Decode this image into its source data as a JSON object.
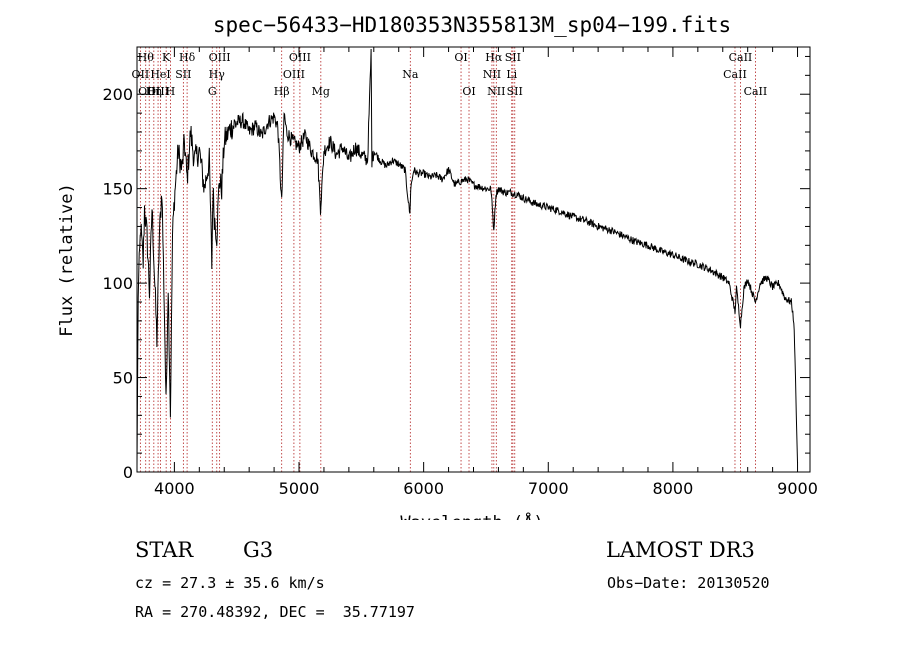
{
  "chart_data": {
    "type": "line",
    "title": "spec−56433−HD180353N355813M_sp04−199.fits",
    "xlabel": "Wavelength (Å)",
    "ylabel": "Flux (relative)",
    "xlim": [
      3700,
      9100
    ],
    "ylim": [
      0,
      225
    ],
    "xticks": [
      4000,
      5000,
      6000,
      7000,
      8000,
      9000
    ],
    "yticks": [
      0,
      50,
      100,
      150,
      200
    ],
    "series": [
      {
        "name": "spectrum",
        "x": [
          3700,
          3710,
          3730,
          3750,
          3760,
          3780,
          3800,
          3820,
          3840,
          3860,
          3880,
          3900,
          3920,
          3933,
          3950,
          3968,
          3985,
          4000,
          4030,
          4060,
          4080,
          4102,
          4130,
          4160,
          4200,
          4240,
          4280,
          4300,
          4310,
          4320,
          4340,
          4360,
          4380,
          4400,
          4450,
          4500,
          4550,
          4600,
          4650,
          4700,
          4750,
          4800,
          4830,
          4861,
          4880,
          4900,
          4950,
          5000,
          5050,
          5100,
          5150,
          5172,
          5183,
          5200,
          5250,
          5300,
          5350,
          5400,
          5450,
          5500,
          5550,
          5578,
          5585,
          5600,
          5650,
          5700,
          5750,
          5800,
          5850,
          5890,
          5896,
          5920,
          5950,
          6000,
          6050,
          6100,
          6150,
          6200,
          6250,
          6300,
          6350,
          6400,
          6450,
          6500,
          6540,
          6563,
          6580,
          6600,
          6650,
          6700,
          6750,
          6800,
          6900,
          7000,
          7100,
          7200,
          7300,
          7400,
          7500,
          7600,
          7700,
          7800,
          7900,
          8000,
          8100,
          8200,
          8300,
          8400,
          8450,
          8498,
          8510,
          8542,
          8570,
          8600,
          8662,
          8700,
          8750,
          8800,
          8850,
          8900,
          8950,
          8970,
          8980,
          8990,
          9000
        ],
        "y": [
          3,
          95,
          130,
          110,
          140,
          125,
          95,
          140,
          105,
          70,
          125,
          150,
          85,
          35,
          100,
          30,
          125,
          145,
          170,
          160,
          175,
          155,
          180,
          165,
          170,
          150,
          165,
          110,
          150,
          135,
          125,
          155,
          150,
          175,
          182,
          185,
          186,
          180,
          183,
          178,
          185,
          188,
          183,
          142,
          190,
          180,
          175,
          172,
          178,
          170,
          166,
          140,
          150,
          170,
          175,
          168,
          172,
          165,
          172,
          168,
          165,
          222,
          165,
          170,
          165,
          162,
          165,
          163,
          160,
          136,
          150,
          160,
          158,
          158,
          156,
          157,
          155,
          160,
          152,
          154,
          155,
          152,
          151,
          150,
          150,
          128,
          147,
          150,
          148,
          148,
          147,
          145,
          142,
          140,
          138,
          135,
          133,
          130,
          128,
          125,
          122,
          120,
          117,
          115,
          112,
          110,
          107,
          103,
          100,
          85,
          97,
          78,
          97,
          102,
          90,
          100,
          103,
          98,
          100,
          92,
          90,
          80,
          60,
          30,
          5
        ]
      }
    ],
    "lines": [
      {
        "wl": 3727,
        "label": "OII",
        "row": 2
      },
      {
        "wl": 3770,
        "label": "Hθ",
        "row": 1
      },
      {
        "wl": 3798,
        "label": "OIII",
        "row": 3
      },
      {
        "wl": 3835,
        "label": "Hη",
        "row": 3
      },
      {
        "wl": 3869,
        "label": "OIII",
        "row": 3
      },
      {
        "wl": 3889,
        "label": "HeI",
        "row": 2
      },
      {
        "wl": 3934,
        "label": "K",
        "row": 1
      },
      {
        "wl": 3968,
        "label": "H",
        "row": 3
      },
      {
        "wl": 4072,
        "label": "SII",
        "row": 2
      },
      {
        "wl": 4102,
        "label": "Hδ",
        "row": 1
      },
      {
        "wl": 4304,
        "label": "G",
        "row": 3
      },
      {
        "wl": 4340,
        "label": "Hγ",
        "row": 2
      },
      {
        "wl": 4363,
        "label": "OIII",
        "row": 1
      },
      {
        "wl": 4861,
        "label": "Hβ",
        "row": 3
      },
      {
        "wl": 4959,
        "label": "OIII",
        "row": 2
      },
      {
        "wl": 5007,
        "label": "OIII",
        "row": 1
      },
      {
        "wl": 5175,
        "label": "Mg",
        "row": 3
      },
      {
        "wl": 5893,
        "label": "Na",
        "row": 2
      },
      {
        "wl": 6300,
        "label": "OI",
        "row": 1
      },
      {
        "wl": 6364,
        "label": "OI",
        "row": 3
      },
      {
        "wl": 6548,
        "label": "NII",
        "row": 2
      },
      {
        "wl": 6563,
        "label": "Hα",
        "row": 1
      },
      {
        "wl": 6583,
        "label": "NII",
        "row": 3
      },
      {
        "wl": 6707,
        "label": "Li",
        "row": 2
      },
      {
        "wl": 6716,
        "label": "SII",
        "row": 1
      },
      {
        "wl": 6731,
        "label": "SII",
        "row": 3
      },
      {
        "wl": 8498,
        "label": "CaII",
        "row": 2
      },
      {
        "wl": 8542,
        "label": "CaII",
        "row": 1
      },
      {
        "wl": 8662,
        "label": "CaII",
        "row": 3
      }
    ]
  },
  "info": {
    "class_label": "STAR",
    "subclass": "G3",
    "survey": "LAMOST DR3",
    "cz": "cz = 27.3 ± 35.6 km/s",
    "obs_date": "Obs−Date: 20130520",
    "radec": "RA = 270.48392, DEC =  35.77197"
  },
  "colors": {
    "line_marker": "#b22222",
    "spectrum": "#000000"
  }
}
